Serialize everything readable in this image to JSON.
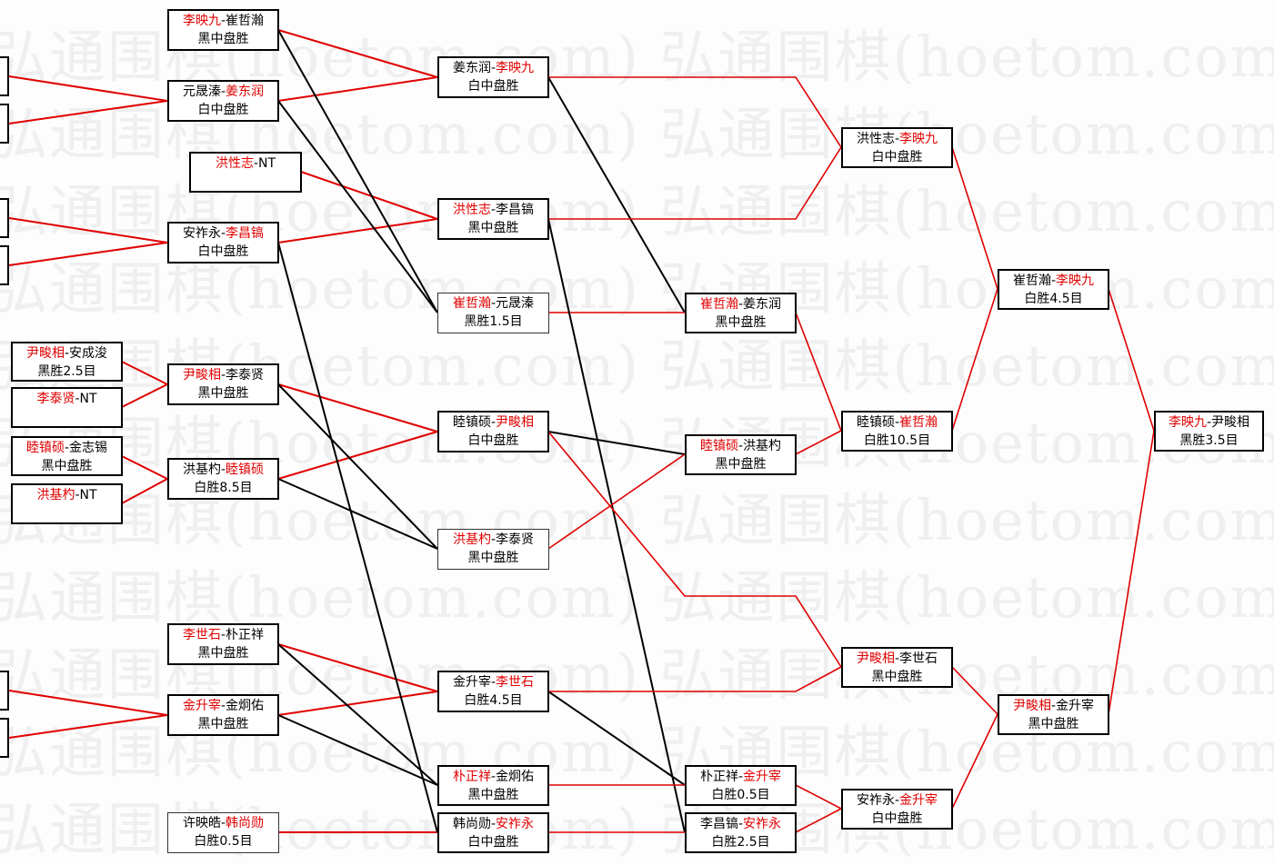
{
  "watermark": "弘通围棋(hoetom.com)",
  "colors": {
    "winner": "#e00000",
    "advance_line": "#e00000",
    "loser_line": "#000000",
    "border": "#000000"
  },
  "boxes": [
    {
      "id": "L1",
      "parts": [],
      "result": ""
    },
    {
      "id": "L2",
      "parts": [],
      "result": ""
    },
    {
      "id": "L3",
      "parts": [],
      "result": ""
    },
    {
      "id": "L4",
      "parts": [],
      "result": ""
    },
    {
      "id": "L5",
      "parts": [],
      "result": ""
    },
    {
      "id": "L6",
      "parts": [],
      "result": ""
    },
    {
      "id": "A1",
      "parts": [
        {
          "t": "尹畯相",
          "red": true
        },
        {
          "t": "-安成浚",
          "red": false
        }
      ],
      "result": "黑胜2.5目"
    },
    {
      "id": "A2",
      "parts": [
        {
          "t": "李泰贤",
          "red": true
        },
        {
          "t": "-NT",
          "red": false
        }
      ],
      "result": ""
    },
    {
      "id": "A3",
      "parts": [
        {
          "t": "睦镇硕",
          "red": true
        },
        {
          "t": "-金志锡",
          "red": false
        }
      ],
      "result": "黑中盘胜"
    },
    {
      "id": "A4",
      "parts": [
        {
          "t": "洪基杓",
          "red": true
        },
        {
          "t": "-NT",
          "red": false
        }
      ],
      "result": ""
    },
    {
      "id": "B1",
      "parts": [
        {
          "t": "李映九",
          "red": true
        },
        {
          "t": "-崔哲瀚",
          "red": false
        }
      ],
      "result": "黑中盘胜"
    },
    {
      "id": "B2",
      "parts": [
        {
          "t": "元晟溱-",
          "red": false
        },
        {
          "t": "姜东润",
          "red": true
        }
      ],
      "result": "白中盘胜"
    },
    {
      "id": "B3",
      "parts": [
        {
          "t": "洪性志",
          "red": true
        },
        {
          "t": "-NT",
          "red": false
        }
      ],
      "result": ""
    },
    {
      "id": "B4",
      "parts": [
        {
          "t": "安祚永-",
          "red": false
        },
        {
          "t": "李昌镐",
          "red": true
        }
      ],
      "result": "白中盘胜"
    },
    {
      "id": "B5",
      "parts": [
        {
          "t": "尹畯相",
          "red": true
        },
        {
          "t": "-李泰贤",
          "red": false
        }
      ],
      "result": "黑中盘胜"
    },
    {
      "id": "B6",
      "parts": [
        {
          "t": "洪基杓-",
          "red": false
        },
        {
          "t": "睦镇硕",
          "red": true
        }
      ],
      "result": "白胜8.5目"
    },
    {
      "id": "B7",
      "parts": [
        {
          "t": "李世石",
          "red": true
        },
        {
          "t": "-朴正祥",
          "red": false
        }
      ],
      "result": "黑中盘胜"
    },
    {
      "id": "B8",
      "parts": [
        {
          "t": "金升宰",
          "red": true
        },
        {
          "t": "-金炯佑",
          "red": false
        }
      ],
      "result": "黑中盘胜"
    },
    {
      "id": "B9",
      "parts": [
        {
          "t": "许映皓-",
          "red": false
        },
        {
          "t": "韩尚勋",
          "red": true
        }
      ],
      "result": "白胜0.5目"
    },
    {
      "id": "C1",
      "parts": [
        {
          "t": "姜东润-",
          "red": false
        },
        {
          "t": "李映九",
          "red": true
        }
      ],
      "result": "白中盘胜"
    },
    {
      "id": "C2",
      "parts": [
        {
          "t": "洪性志",
          "red": true
        },
        {
          "t": "-李昌镐",
          "red": false
        }
      ],
      "result": "黑中盘胜"
    },
    {
      "id": "C3",
      "parts": [
        {
          "t": "崔哲瀚",
          "red": true
        },
        {
          "t": "-元晟溱",
          "red": false
        }
      ],
      "result": "黑胜1.5目"
    },
    {
      "id": "C4",
      "parts": [
        {
          "t": "睦镇硕-",
          "red": false
        },
        {
          "t": "尹畯相",
          "red": true
        }
      ],
      "result": "白中盘胜"
    },
    {
      "id": "C5",
      "parts": [
        {
          "t": "洪基杓",
          "red": true
        },
        {
          "t": "-李泰贤",
          "red": false
        }
      ],
      "result": "黑中盘胜"
    },
    {
      "id": "C6",
      "parts": [
        {
          "t": "金升宰-",
          "red": false
        },
        {
          "t": "李世石",
          "red": true
        }
      ],
      "result": "白胜4.5目"
    },
    {
      "id": "C7",
      "parts": [
        {
          "t": "朴正祥",
          "red": true
        },
        {
          "t": "-金炯佑",
          "red": false
        }
      ],
      "result": "黑中盘胜"
    },
    {
      "id": "C8",
      "parts": [
        {
          "t": "韩尚勋-",
          "red": false
        },
        {
          "t": "安祚永",
          "red": true
        }
      ],
      "result": "白中盘胜"
    },
    {
      "id": "D1",
      "parts": [
        {
          "t": "崔哲瀚",
          "red": true
        },
        {
          "t": "-姜东润",
          "red": false
        }
      ],
      "result": "黑中盘胜"
    },
    {
      "id": "D2",
      "parts": [
        {
          "t": "睦镇硕",
          "red": true
        },
        {
          "t": "-洪基杓",
          "red": false
        }
      ],
      "result": "黑中盘胜"
    },
    {
      "id": "D3",
      "parts": [
        {
          "t": "朴正祥-",
          "red": false
        },
        {
          "t": "金升宰",
          "red": true
        }
      ],
      "result": "白胜0.5目"
    },
    {
      "id": "D4",
      "parts": [
        {
          "t": "李昌镐-",
          "red": false
        },
        {
          "t": "安祚永",
          "red": true
        }
      ],
      "result": "白胜2.5目"
    },
    {
      "id": "E1",
      "parts": [
        {
          "t": "洪性志-",
          "red": false
        },
        {
          "t": "李映九",
          "red": true
        }
      ],
      "result": "白中盘胜"
    },
    {
      "id": "E2",
      "parts": [
        {
          "t": "睦镇硕-",
          "red": false
        },
        {
          "t": "崔哲瀚",
          "red": true
        }
      ],
      "result": "白胜10.5目"
    },
    {
      "id": "E3",
      "parts": [
        {
          "t": "尹畯相",
          "red": true
        },
        {
          "t": "-李世石",
          "red": false
        }
      ],
      "result": "黑中盘胜"
    },
    {
      "id": "E4",
      "parts": [
        {
          "t": "安祚永-",
          "red": false
        },
        {
          "t": "金升宰",
          "red": true
        }
      ],
      "result": "白中盘胜"
    },
    {
      "id": "F1",
      "parts": [
        {
          "t": "崔哲瀚-",
          "red": false
        },
        {
          "t": "李映九",
          "red": true
        }
      ],
      "result": "白胜4.5目"
    },
    {
      "id": "F2",
      "parts": [
        {
          "t": "尹畯相",
          "red": true
        },
        {
          "t": "-金升宰",
          "red": false
        }
      ],
      "result": "黑中盘胜"
    },
    {
      "id": "G1",
      "parts": [
        {
          "t": "李映九",
          "red": true
        },
        {
          "t": "-尹畯相",
          "red": false
        }
      ],
      "result": "黑胜3.5目"
    }
  ]
}
